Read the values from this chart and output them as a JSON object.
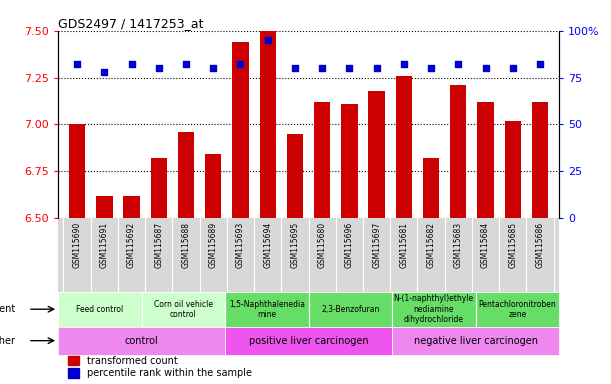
{
  "title": "GDS2497 / 1417253_at",
  "samples": [
    "GSM115690",
    "GSM115691",
    "GSM115692",
    "GSM115687",
    "GSM115688",
    "GSM115689",
    "GSM115693",
    "GSM115694",
    "GSM115695",
    "GSM115680",
    "GSM115696",
    "GSM115697",
    "GSM115681",
    "GSM115682",
    "GSM115683",
    "GSM115684",
    "GSM115685",
    "GSM115686"
  ],
  "transformed_count": [
    7.0,
    6.62,
    6.62,
    6.82,
    6.96,
    6.84,
    7.44,
    7.5,
    6.95,
    7.12,
    7.11,
    7.18,
    7.26,
    6.82,
    7.21,
    7.12,
    7.02,
    7.12
  ],
  "percentile_rank": [
    82,
    78,
    82,
    80,
    82,
    80,
    82,
    95,
    80,
    80,
    80,
    80,
    82,
    80,
    82,
    80,
    80,
    82
  ],
  "ylim_left": [
    6.5,
    7.5
  ],
  "ylim_right": [
    0,
    100
  ],
  "yticks_left": [
    6.5,
    6.75,
    7.0,
    7.25,
    7.5
  ],
  "yticks_right": [
    0,
    25,
    50,
    75,
    100
  ],
  "bar_color": "#cc0000",
  "dot_color": "#0000cc",
  "agent_groups": [
    {
      "label": "Feed control",
      "start": 0,
      "end": 3,
      "color": "#ccffcc"
    },
    {
      "label": "Corn oil vehicle\ncontrol",
      "start": 3,
      "end": 6,
      "color": "#ccffcc"
    },
    {
      "label": "1,5-Naphthalenedia\nmine",
      "start": 6,
      "end": 9,
      "color": "#66dd66"
    },
    {
      "label": "2,3-Benzofuran",
      "start": 9,
      "end": 12,
      "color": "#66dd66"
    },
    {
      "label": "N-(1-naphthyl)ethyle\nnediamine\ndihydrochloride",
      "start": 12,
      "end": 15,
      "color": "#66dd66"
    },
    {
      "label": "Pentachloronitroben\nzene",
      "start": 15,
      "end": 18,
      "color": "#66dd66"
    }
  ],
  "other_groups": [
    {
      "label": "control",
      "start": 0,
      "end": 6,
      "color": "#ee88ee"
    },
    {
      "label": "positive liver carcinogen",
      "start": 6,
      "end": 12,
      "color": "#ee55ee"
    },
    {
      "label": "negative liver carcinogen",
      "start": 12,
      "end": 18,
      "color": "#ee88ee"
    }
  ],
  "xtick_bg": "#d8d8d8",
  "title_fontsize": 9,
  "tick_fontsize": 6,
  "bar_width": 0.6
}
